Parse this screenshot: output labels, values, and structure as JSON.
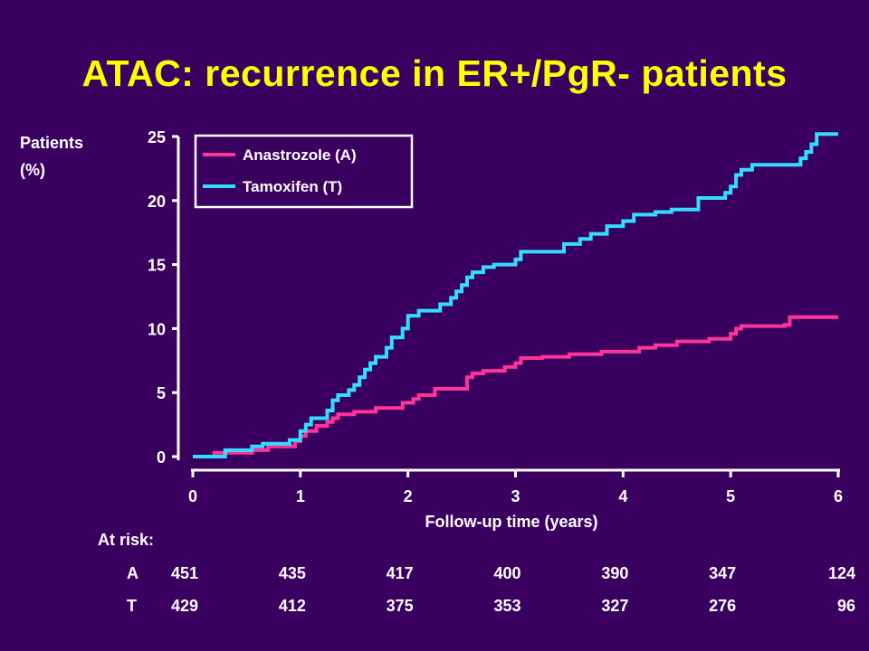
{
  "title": "ATAC: recurrence in ER+/PgR- patients",
  "colors": {
    "background": "#3a0060",
    "title": "#ffff00",
    "anastrozole": "#ff3399",
    "tamoxifen": "#33ddff",
    "axis": "#ffffff"
  },
  "chart_data": {
    "type": "line",
    "title": "ATAC: recurrence in ER+/PgR- patients",
    "ylabel_lines": [
      "Patients",
      "(%)"
    ],
    "xlabel": "Follow-up time (years)",
    "xlim": [
      0,
      6
    ],
    "ylim": [
      0,
      25
    ],
    "xticks": [
      0,
      1,
      2,
      3,
      4,
      5,
      6
    ],
    "yticks": [
      0,
      5,
      10,
      15,
      20,
      25
    ],
    "legend_position": "top-left",
    "series": [
      {
        "name": "Anastrozole (A)",
        "color": "#ff3399",
        "step": true,
        "points": [
          [
            0.2,
            0
          ],
          [
            0.2,
            0.3
          ],
          [
            0.55,
            0.3
          ],
          [
            0.55,
            0.5
          ],
          [
            0.7,
            0.5
          ],
          [
            0.7,
            0.8
          ],
          [
            0.95,
            0.8
          ],
          [
            0.95,
            1.2
          ],
          [
            1.0,
            1.2
          ],
          [
            1.0,
            1.6
          ],
          [
            1.05,
            1.6
          ],
          [
            1.05,
            2.0
          ],
          [
            1.15,
            2.0
          ],
          [
            1.15,
            2.4
          ],
          [
            1.25,
            2.4
          ],
          [
            1.25,
            2.7
          ],
          [
            1.3,
            2.7
          ],
          [
            1.3,
            3.0
          ],
          [
            1.35,
            3.0
          ],
          [
            1.35,
            3.3
          ],
          [
            1.5,
            3.3
          ],
          [
            1.5,
            3.5
          ],
          [
            1.7,
            3.5
          ],
          [
            1.7,
            3.8
          ],
          [
            1.95,
            3.8
          ],
          [
            1.95,
            4.2
          ],
          [
            2.05,
            4.2
          ],
          [
            2.05,
            4.5
          ],
          [
            2.1,
            4.5
          ],
          [
            2.1,
            4.8
          ],
          [
            2.25,
            4.8
          ],
          [
            2.25,
            5.3
          ],
          [
            2.55,
            5.3
          ],
          [
            2.55,
            6.2
          ],
          [
            2.6,
            6.2
          ],
          [
            2.6,
            6.5
          ],
          [
            2.7,
            6.5
          ],
          [
            2.7,
            6.7
          ],
          [
            2.9,
            6.7
          ],
          [
            2.9,
            7.0
          ],
          [
            3.0,
            7.0
          ],
          [
            3.0,
            7.3
          ],
          [
            3.05,
            7.3
          ],
          [
            3.05,
            7.7
          ],
          [
            3.25,
            7.7
          ],
          [
            3.25,
            7.8
          ],
          [
            3.5,
            7.8
          ],
          [
            3.5,
            8.0
          ],
          [
            3.8,
            8.0
          ],
          [
            3.8,
            8.2
          ],
          [
            4.15,
            8.2
          ],
          [
            4.15,
            8.5
          ],
          [
            4.3,
            8.5
          ],
          [
            4.3,
            8.7
          ],
          [
            4.5,
            8.7
          ],
          [
            4.5,
            9.0
          ],
          [
            4.8,
            9.0
          ],
          [
            4.8,
            9.2
          ],
          [
            5.0,
            9.2
          ],
          [
            5.0,
            9.6
          ],
          [
            5.05,
            9.6
          ],
          [
            5.05,
            10.0
          ],
          [
            5.1,
            10.0
          ],
          [
            5.1,
            10.2
          ],
          [
            5.5,
            10.2
          ],
          [
            5.5,
            10.3
          ],
          [
            5.55,
            10.3
          ],
          [
            5.55,
            10.9
          ],
          [
            6.0,
            10.9
          ]
        ]
      },
      {
        "name": "Tamoxifen (T)",
        "color": "#33ddff",
        "step": true,
        "points": [
          [
            0.0,
            0
          ],
          [
            0.3,
            0
          ],
          [
            0.3,
            0.5
          ],
          [
            0.55,
            0.5
          ],
          [
            0.55,
            0.8
          ],
          [
            0.65,
            0.8
          ],
          [
            0.65,
            1.0
          ],
          [
            0.9,
            1.0
          ],
          [
            0.9,
            1.3
          ],
          [
            1.0,
            1.3
          ],
          [
            1.0,
            2.0
          ],
          [
            1.05,
            2.0
          ],
          [
            1.05,
            2.5
          ],
          [
            1.1,
            2.5
          ],
          [
            1.1,
            3.0
          ],
          [
            1.25,
            3.0
          ],
          [
            1.25,
            3.6
          ],
          [
            1.3,
            3.6
          ],
          [
            1.3,
            4.4
          ],
          [
            1.35,
            4.4
          ],
          [
            1.35,
            4.8
          ],
          [
            1.45,
            4.8
          ],
          [
            1.45,
            5.2
          ],
          [
            1.5,
            5.2
          ],
          [
            1.5,
            5.6
          ],
          [
            1.55,
            5.6
          ],
          [
            1.55,
            6.2
          ],
          [
            1.6,
            6.2
          ],
          [
            1.6,
            6.8
          ],
          [
            1.65,
            6.8
          ],
          [
            1.65,
            7.3
          ],
          [
            1.7,
            7.3
          ],
          [
            1.7,
            7.8
          ],
          [
            1.8,
            7.8
          ],
          [
            1.8,
            8.5
          ],
          [
            1.85,
            8.5
          ],
          [
            1.85,
            9.3
          ],
          [
            1.95,
            9.3
          ],
          [
            1.95,
            10.0
          ],
          [
            2.0,
            10.0
          ],
          [
            2.0,
            11.0
          ],
          [
            2.1,
            11.0
          ],
          [
            2.1,
            11.4
          ],
          [
            2.3,
            11.4
          ],
          [
            2.3,
            11.9
          ],
          [
            2.4,
            11.9
          ],
          [
            2.4,
            12.4
          ],
          [
            2.45,
            12.4
          ],
          [
            2.45,
            12.9
          ],
          [
            2.5,
            12.9
          ],
          [
            2.5,
            13.4
          ],
          [
            2.55,
            13.4
          ],
          [
            2.55,
            14.0
          ],
          [
            2.6,
            14.0
          ],
          [
            2.6,
            14.4
          ],
          [
            2.7,
            14.4
          ],
          [
            2.7,
            14.8
          ],
          [
            2.8,
            14.8
          ],
          [
            2.8,
            15.0
          ],
          [
            3.0,
            15.0
          ],
          [
            3.0,
            15.4
          ],
          [
            3.05,
            15.4
          ],
          [
            3.05,
            16.0
          ],
          [
            3.45,
            16.0
          ],
          [
            3.45,
            16.6
          ],
          [
            3.6,
            16.6
          ],
          [
            3.6,
            17.0
          ],
          [
            3.7,
            17.0
          ],
          [
            3.7,
            17.4
          ],
          [
            3.85,
            17.4
          ],
          [
            3.85,
            18.0
          ],
          [
            4.0,
            18.0
          ],
          [
            4.0,
            18.4
          ],
          [
            4.1,
            18.4
          ],
          [
            4.1,
            18.9
          ],
          [
            4.3,
            18.9
          ],
          [
            4.3,
            19.1
          ],
          [
            4.45,
            19.1
          ],
          [
            4.45,
            19.3
          ],
          [
            4.7,
            19.3
          ],
          [
            4.7,
            20.2
          ],
          [
            4.95,
            20.2
          ],
          [
            4.95,
            20.6
          ],
          [
            5.0,
            20.6
          ],
          [
            5.0,
            21.1
          ],
          [
            5.05,
            21.1
          ],
          [
            5.05,
            22.0
          ],
          [
            5.1,
            22.0
          ],
          [
            5.1,
            22.4
          ],
          [
            5.2,
            22.4
          ],
          [
            5.2,
            22.8
          ],
          [
            5.65,
            22.8
          ],
          [
            5.65,
            23.3
          ],
          [
            5.7,
            23.3
          ],
          [
            5.7,
            23.8
          ],
          [
            5.75,
            23.8
          ],
          [
            5.75,
            24.4
          ],
          [
            5.8,
            24.4
          ],
          [
            5.8,
            25.2
          ],
          [
            6.0,
            25.2
          ]
        ]
      }
    ]
  },
  "at_risk": {
    "title": "At risk:",
    "rows": [
      {
        "label": "A",
        "values": [
          "451",
          "435",
          "417",
          "400",
          "390",
          "347",
          "124"
        ]
      },
      {
        "label": "T",
        "values": [
          "429",
          "412",
          "375",
          "353",
          "327",
          "276",
          "96"
        ]
      }
    ]
  }
}
